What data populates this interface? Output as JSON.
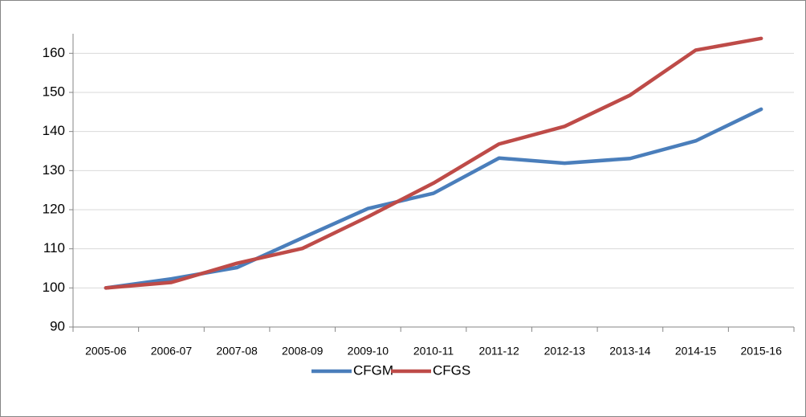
{
  "chart_data": {
    "type": "line",
    "categories": [
      "2005-06",
      "2006-07",
      "2007-08",
      "2008-09",
      "2009-10",
      "2010-11",
      "2011-12",
      "2012-13",
      "2013-14",
      "2014-15",
      "2015-16"
    ],
    "series": [
      {
        "name": "CFGM",
        "color": "#4a7ebb",
        "values": [
          100,
          102.3,
          105.2,
          112.8,
          120.3,
          124.2,
          133.2,
          131.9,
          133.1,
          137.6,
          145.7
        ]
      },
      {
        "name": "CFGS",
        "color": "#be4b48",
        "values": [
          100,
          101.4,
          106.3,
          110.1,
          118.2,
          126.8,
          136.8,
          141.3,
          149.3,
          160.8,
          163.8
        ]
      }
    ],
    "ylim": [
      90,
      165
    ],
    "yticks": [
      90,
      100,
      110,
      120,
      130,
      140,
      150,
      160
    ],
    "grid": true,
    "legend": "bottom"
  }
}
